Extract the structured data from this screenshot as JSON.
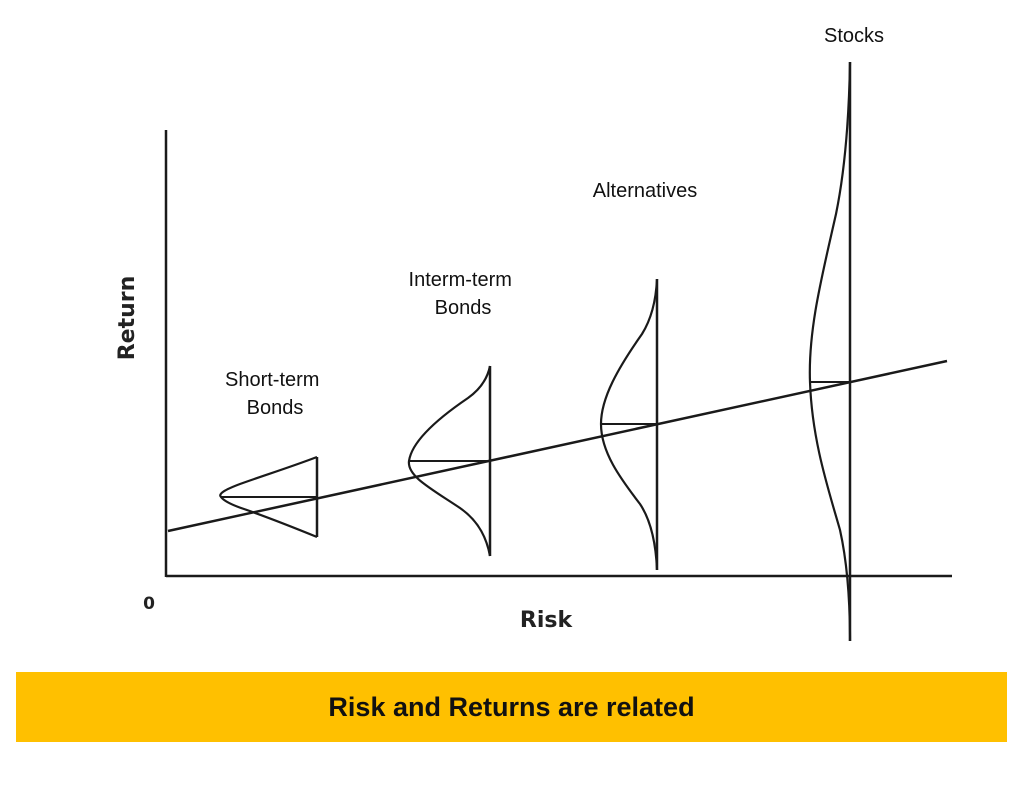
{
  "diagram": {
    "y_axis_label": "Return",
    "x_axis_label": "Risk",
    "origin_label": "0",
    "assets": [
      {
        "name": "short-term-bonds",
        "label_lines": [
          "Short-term",
          "Bonds"
        ]
      },
      {
        "name": "interm-term-bonds",
        "label_lines": [
          "Interm-term",
          "Bonds"
        ]
      },
      {
        "name": "alternatives",
        "label_lines": [
          "Alternatives"
        ]
      },
      {
        "name": "stocks",
        "label_lines": [
          "Stocks"
        ]
      }
    ]
  },
  "banner": {
    "text": "Risk and Returns are related",
    "color": "#FFC000"
  },
  "colors": {
    "line": "#1a1a1a"
  }
}
